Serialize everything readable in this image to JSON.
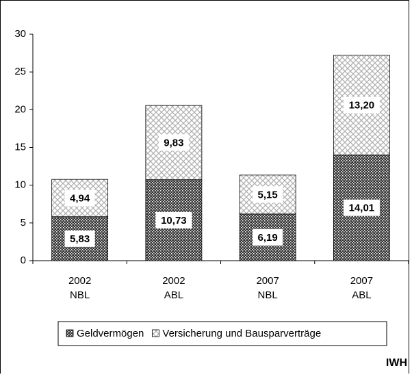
{
  "chart_data": {
    "type": "stacked_bar",
    "categories": [
      [
        "2002",
        "NBL"
      ],
      [
        "2002",
        "ABL"
      ],
      [
        "2007",
        "NBL"
      ],
      [
        "2007",
        "ABL"
      ]
    ],
    "series": [
      {
        "name": "Geldvermögen",
        "color": "#333333",
        "values": [
          5.83,
          10.73,
          6.19,
          14.01
        ],
        "value_labels": [
          "5,83",
          "10,73",
          "6,19",
          "14,01"
        ]
      },
      {
        "name": "Versicherung und Bausparverträge",
        "color": "#b0b0b0",
        "values": [
          4.94,
          9.83,
          5.15,
          13.2
        ],
        "value_labels": [
          "4,94",
          "9,83",
          "5,15",
          "13,20"
        ]
      }
    ],
    "ylim": [
      0,
      30
    ],
    "yticks": [
      0,
      5,
      10,
      15,
      20,
      25,
      30
    ],
    "legend": "bottom",
    "source": "IWH"
  }
}
